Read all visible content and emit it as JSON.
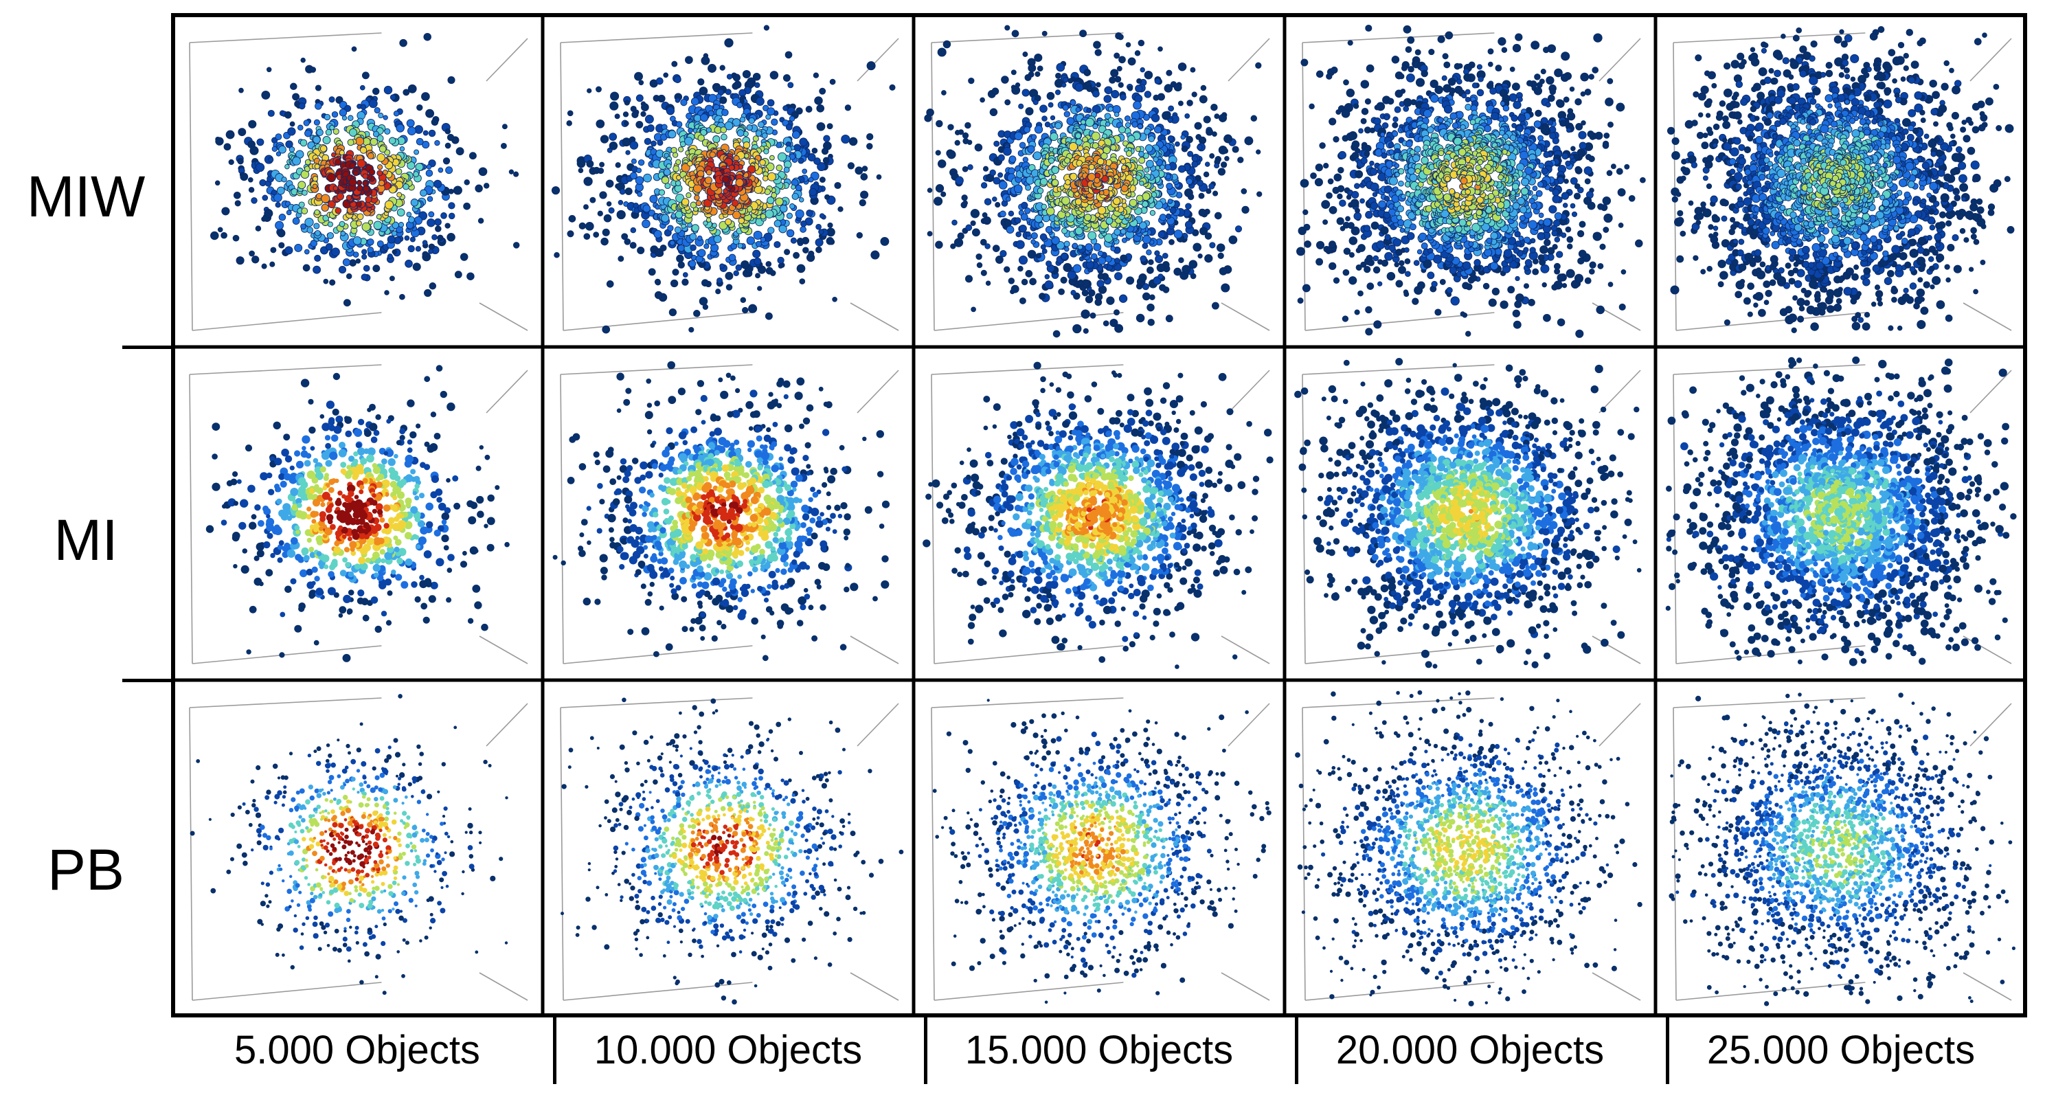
{
  "figure": {
    "rows": [
      {
        "label": "MIW",
        "marker_style": "ring"
      },
      {
        "label": "MI",
        "marker_style": "filled"
      },
      {
        "label": "PB",
        "marker_style": "small"
      }
    ],
    "columns": [
      {
        "label": "5.000 Objects",
        "object_count": 5000
      },
      {
        "label": "10.000 Objects",
        "object_count": 10000
      },
      {
        "label": "15.000 Objects",
        "object_count": 15000
      },
      {
        "label": "20.000 Objects",
        "object_count": 20000
      },
      {
        "label": "25.000 Objects",
        "object_count": 25000
      }
    ],
    "colormap": [
      "#08306b",
      "#0a44a8",
      "#1d6fe0",
      "#3fa9e8",
      "#5fd3c6",
      "#b8e05a",
      "#f2d43a",
      "#f08a1e",
      "#d42a12",
      "#8f0d0d"
    ],
    "background": "#ffffff",
    "border_color": "#000000"
  }
}
